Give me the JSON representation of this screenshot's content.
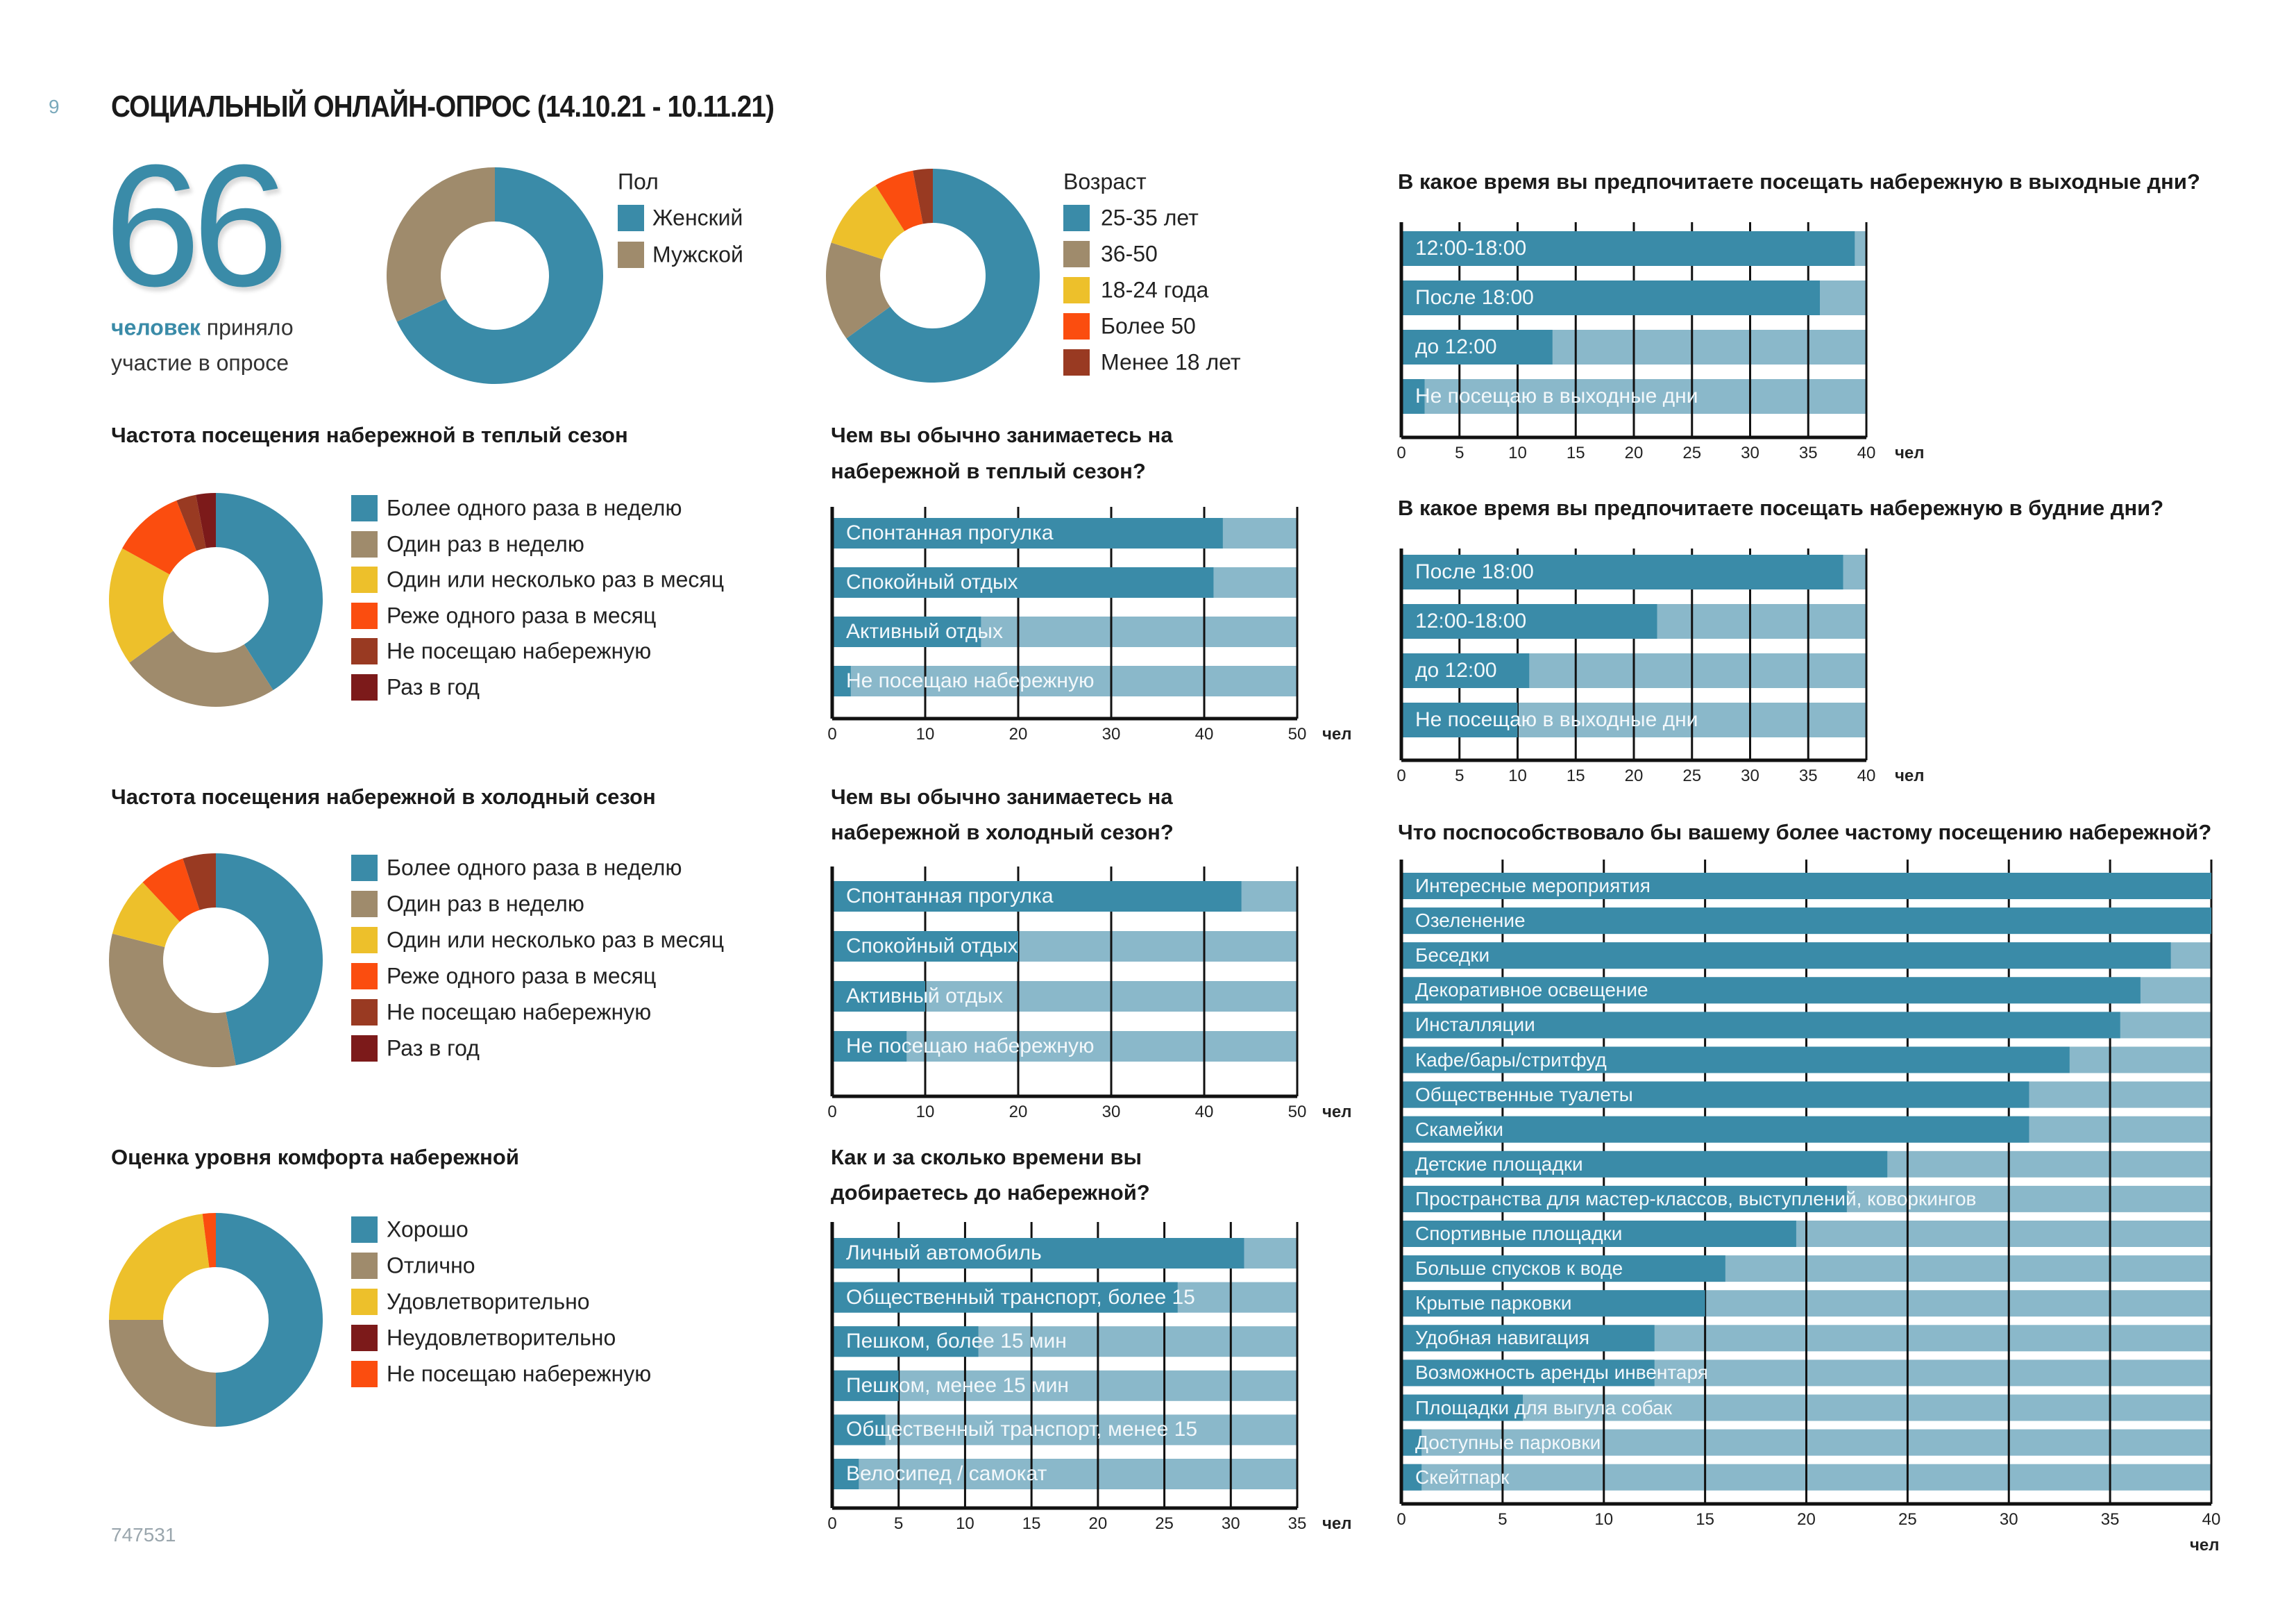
{
  "header": {
    "page_number": "9",
    "title": "СОЦИАЛЬНЫЙ ОНЛАЙН-ОПРОС (14.10.21 - 10.11.21)"
  },
  "summary": {
    "count": "66",
    "caption_highlight": "человек",
    "caption_rest": "приняло",
    "caption_line2": "участие в опросе"
  },
  "footer": {
    "code": "747531"
  },
  "colors": {
    "blue": "#3a8ba8",
    "light_blue": "#8ab8ca",
    "tan": "#9f8b6c",
    "yellow": "#edc02b",
    "orange": "#fb4d0f",
    "brown": "#993a22",
    "dark_red": "#7c1a1a"
  },
  "chart_data": [
    {
      "type": "pie",
      "donut": true,
      "title": "",
      "legend_title": "Пол",
      "categories": [
        "Женский",
        "Мужской"
      ],
      "values": [
        68,
        32
      ],
      "unit": "%",
      "colors": [
        "#3a8ba8",
        "#9f8b6c"
      ]
    },
    {
      "type": "pie",
      "donut": true,
      "title": "",
      "legend_title": "Возраст",
      "categories": [
        "25-35 лет",
        "36-50",
        "18-24 года",
        "Более 50",
        "Менее 18 лет"
      ],
      "values": [
        65,
        15,
        11,
        6,
        3
      ],
      "unit": "%",
      "colors": [
        "#3a8ba8",
        "#9f8b6c",
        "#edc02b",
        "#fb4d0f",
        "#993a22"
      ]
    },
    {
      "type": "pie",
      "donut": true,
      "title": "Частота посещения набережной в теплый сезон",
      "legend_title": "",
      "categories": [
        "Более одного раза в неделю",
        "Один раз в неделю",
        "Один или несколько раз в месяц",
        "Реже одного раза в месяц",
        "Не посещаю набережную",
        "Раз в год"
      ],
      "values": [
        41,
        24,
        18,
        11,
        3,
        3
      ],
      "unit": "%",
      "colors": [
        "#3a8ba8",
        "#9f8b6c",
        "#edc02b",
        "#fb4d0f",
        "#993a22",
        "#7c1a1a"
      ]
    },
    {
      "type": "pie",
      "donut": true,
      "title": "Частота посещения набережной в холодный сезон",
      "legend_title": "",
      "categories": [
        "Более одного раза в неделю",
        "Один раз в неделю",
        "Один или несколько раз в месяц",
        "Реже одного раза в месяц",
        "Не посещаю набережную",
        "Раз в год"
      ],
      "values": [
        47,
        32,
        9,
        7,
        5,
        0
      ],
      "unit": "%",
      "colors": [
        "#3a8ba8",
        "#9f8b6c",
        "#edc02b",
        "#fb4d0f",
        "#993a22",
        "#7c1a1a"
      ]
    },
    {
      "type": "pie",
      "donut": true,
      "title": "Оценка уровня комфорта набережной",
      "legend_title": "",
      "categories": [
        "Хорошо",
        "Отлично",
        "Удовлетворительно",
        "Неудовлетворительно",
        "Не посещаю набережную"
      ],
      "values": [
        50,
        25,
        23,
        0,
        2
      ],
      "unit": "%",
      "colors": [
        "#3a8ba8",
        "#9f8b6c",
        "#edc02b",
        "#7c1a1a",
        "#fb4d0f"
      ]
    },
    {
      "type": "bar",
      "orientation": "horizontal",
      "title": "Чем вы обычно занимаетесь на",
      "title_line2": "набережной в теплый сезон?",
      "categories": [
        "Спонтанная прогулка",
        "Спокойный отдых",
        "Активный отдых",
        "Не посещаю набережную"
      ],
      "values": [
        42,
        41,
        16,
        2
      ],
      "xlim": [
        0,
        50
      ],
      "xticks": [
        0,
        10,
        20,
        30,
        40,
        50
      ],
      "unit": "чел",
      "grid": true
    },
    {
      "type": "bar",
      "orientation": "horizontal",
      "title": "Чем вы обычно занимаетесь на",
      "title_line2": "набережной в холодный сезон?",
      "categories": [
        "Спонтанная прогулка",
        "Спокойный отдых",
        "Активный отдых",
        "Не посещаю набережную"
      ],
      "values": [
        44,
        20,
        10,
        8
      ],
      "xlim": [
        0,
        50
      ],
      "xticks": [
        0,
        10,
        20,
        30,
        40,
        50
      ],
      "unit": "чел",
      "grid": true
    },
    {
      "type": "bar",
      "orientation": "horizontal",
      "title": "Как и за сколько времени вы",
      "title_line2": "добираетесь до набережной?",
      "categories": [
        "Личный автомобиль",
        "Общественный транспорт, более 15",
        "Пешком, более 15 мин",
        "Пешком, менее 15 мин",
        "Общественный транспорт, менее 15",
        "Велосипед / самокат"
      ],
      "values": [
        31,
        26,
        11,
        5,
        4,
        2
      ],
      "xlim": [
        0,
        35
      ],
      "xticks": [
        0,
        5,
        10,
        15,
        20,
        25,
        30,
        35
      ],
      "unit": "чел",
      "grid": true
    },
    {
      "type": "bar",
      "orientation": "horizontal",
      "title": "В какое время вы предпочитаете посещать набережную в выходные дни?",
      "title_line2": "",
      "categories": [
        "12:00-18:00",
        "После 18:00",
        "до 12:00",
        "Не посещаю в выходные дни"
      ],
      "values": [
        39,
        36,
        13,
        2
      ],
      "xlim": [
        0,
        40
      ],
      "xticks": [
        0,
        5,
        10,
        15,
        20,
        25,
        30,
        35,
        40
      ],
      "unit": "чел",
      "grid": true
    },
    {
      "type": "bar",
      "orientation": "horizontal",
      "title": "В какое время вы предпочитаете посещать набережную в будние дни?",
      "title_line2": "",
      "categories": [
        "После 18:00",
        "12:00-18:00",
        "до 12:00",
        "Не посещаю в выходные дни"
      ],
      "values": [
        38,
        22,
        11,
        10
      ],
      "xlim": [
        0,
        40
      ],
      "xticks": [
        0,
        5,
        10,
        15,
        20,
        25,
        30,
        35,
        40
      ],
      "unit": "чел",
      "grid": true
    },
    {
      "type": "bar",
      "orientation": "horizontal",
      "title": "Что поспособствовало бы вашему более частому посещению набережной?",
      "title_line2": "",
      "categories": [
        "Интересные мероприятия",
        "Озеленение",
        "Беседки",
        "Декоративное освещение",
        "Инсталляции",
        "Кафе/бары/стритфуд",
        "Общественные туалеты",
        "Скамейки",
        "Детские площадки",
        "Пространства для мастер-классов, выступлений, коворкингов",
        "Спортивные площадки",
        "Больше спусков к воде",
        "Крытые парковки",
        "Удобная навигация",
        "Возможность аренды инвентаря",
        "Площадки для выгула собак",
        "Доступные парковки",
        "Скейтпарк"
      ],
      "values": [
        40,
        40,
        38,
        36.5,
        35.5,
        33,
        31,
        31,
        24,
        22,
        19.5,
        16,
        15,
        12.5,
        12.5,
        6,
        1,
        1
      ],
      "xlim": [
        0,
        40
      ],
      "xticks": [
        0,
        5,
        10,
        15,
        20,
        25,
        30,
        35,
        40
      ],
      "unit": "чел",
      "grid": true
    }
  ]
}
